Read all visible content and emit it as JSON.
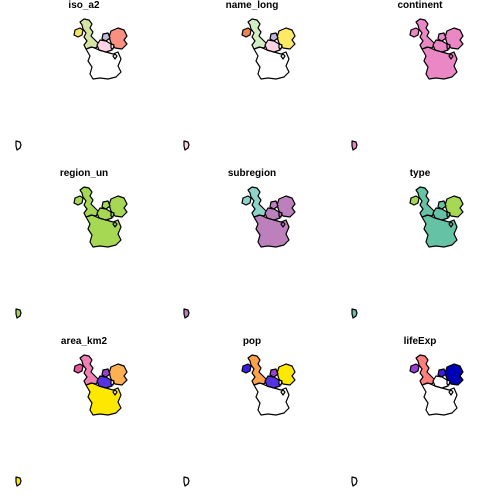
{
  "panels": [
    {
      "title": "iso_a2",
      "colors": {
        "uk": "#d5e4a3",
        "ire": "#f3e55e",
        "fra": "#ffffff",
        "ger": "#f99080",
        "nl": "#bebada",
        "bel": "#ffd2e5",
        "lux": "#ffffff",
        "small": "#ffffff",
        "guiana": "#ffffff"
      }
    },
    {
      "title": "name_long",
      "colors": {
        "uk": "#d2ecc4",
        "ire": "#f0824f",
        "fra": "#ffffff",
        "ger": "#ffea66",
        "nl": "#bdb6dd",
        "bel": "#ffd2e5",
        "lux": "#ffffff",
        "small": "#ffffff",
        "guiana": "#ffd2e5"
      }
    },
    {
      "title": "continent",
      "colors": {
        "uk": "#ea87c4",
        "ire": "#ea87c4",
        "fra": "#ea87c4",
        "ger": "#ea87c4",
        "nl": "#ea87c4",
        "bel": "#ea87c4",
        "lux": "#ea87c4",
        "small": "#ea87c4",
        "guiana": "#ea87c4"
      }
    },
    {
      "title": "region_un",
      "colors": {
        "uk": "#a6d854",
        "ire": "#a6d854",
        "fra": "#a6d854",
        "ger": "#a6d854",
        "nl": "#a6d854",
        "bel": "#a6d854",
        "lux": "#a6d854",
        "small": "#a6d854",
        "guiana": "#a6d854"
      }
    },
    {
      "title": "subregion",
      "colors": {
        "uk": "#8dd3c7",
        "ire": "#8dd3c7",
        "fra": "#bc80bd",
        "ger": "#bc80bd",
        "nl": "#bc80bd",
        "bel": "#bc80bd",
        "lux": "#bc80bd",
        "small": "#bc80bd",
        "guiana": "#bc80bd"
      }
    },
    {
      "title": "type",
      "colors": {
        "uk": "#66c2a5",
        "ire": "#a6d854",
        "fra": "#66c2a5",
        "ger": "#a6d854",
        "nl": "#66c2a5",
        "bel": "#66c2a5",
        "lux": "#66c2a5",
        "small": "#66c2a5",
        "guiana": "#66c2a5"
      }
    },
    {
      "title": "area_km2",
      "colors": {
        "uk": "#f080b4",
        "ire": "#e8559b",
        "fra": "#ffe800",
        "ger": "#ffb050",
        "nl": "#9a3ed6",
        "bel": "#5533e0",
        "lux": "#ffffff",
        "small": "#ffffff",
        "guiana": "#ffe800"
      }
    },
    {
      "title": "pop",
      "colors": {
        "uk": "#ffa24a",
        "ire": "#3b1ce6",
        "fra": "#ffffff",
        "ger": "#ffe800",
        "nl": "#9a3ed6",
        "bel": "#5533e0",
        "lux": "#ffffff",
        "small": "#ffffff",
        "guiana": "#ffffff"
      }
    },
    {
      "title": "lifeExp",
      "colors": {
        "uk": "#ff7f7f",
        "ire": "#9a3ed6",
        "fra": "#ffffff",
        "ger": "#0000b4",
        "nl": "#3b1ce6",
        "bel": "#ffffff",
        "lux": "#ffffff",
        "small": "#ffffff",
        "guiana": "#ffffff"
      }
    }
  ]
}
